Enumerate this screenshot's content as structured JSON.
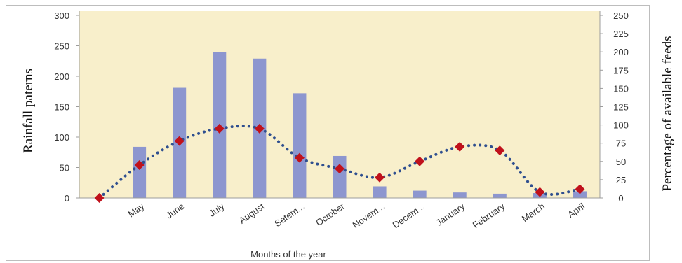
{
  "chart_data": {
    "type": "bar+line",
    "categories": [
      "",
      "May",
      "June",
      "July",
      "August",
      "Setem...",
      "October",
      "Novem...",
      "Decem...",
      "January",
      "February",
      "March",
      "April"
    ],
    "bar_values": [
      0,
      84,
      181,
      240,
      229,
      172,
      69,
      19,
      12,
      9,
      7,
      8,
      11
    ],
    "line_values": [
      0,
      45,
      78,
      95,
      95,
      55,
      40,
      28,
      50,
      70,
      65,
      8,
      12
    ],
    "xlabel": "Months of the year",
    "ylabel": "Rainfall paterns",
    "y2label": "Percentage of available feeds",
    "ylim": [
      0,
      300
    ],
    "y2lim": [
      0,
      250
    ],
    "yticks": [
      "0",
      "50",
      "100",
      "150",
      "200",
      "250",
      "300"
    ],
    "y2ticks": [
      "0",
      "25",
      "50",
      "75",
      "100",
      "125",
      "150",
      "175",
      "200",
      "225",
      "250"
    ],
    "grid": false,
    "colors": {
      "plot_bg": "#f8efcb",
      "bar": "#8d96cf",
      "line": "#2f4f8f",
      "marker": "#c0111b"
    }
  }
}
